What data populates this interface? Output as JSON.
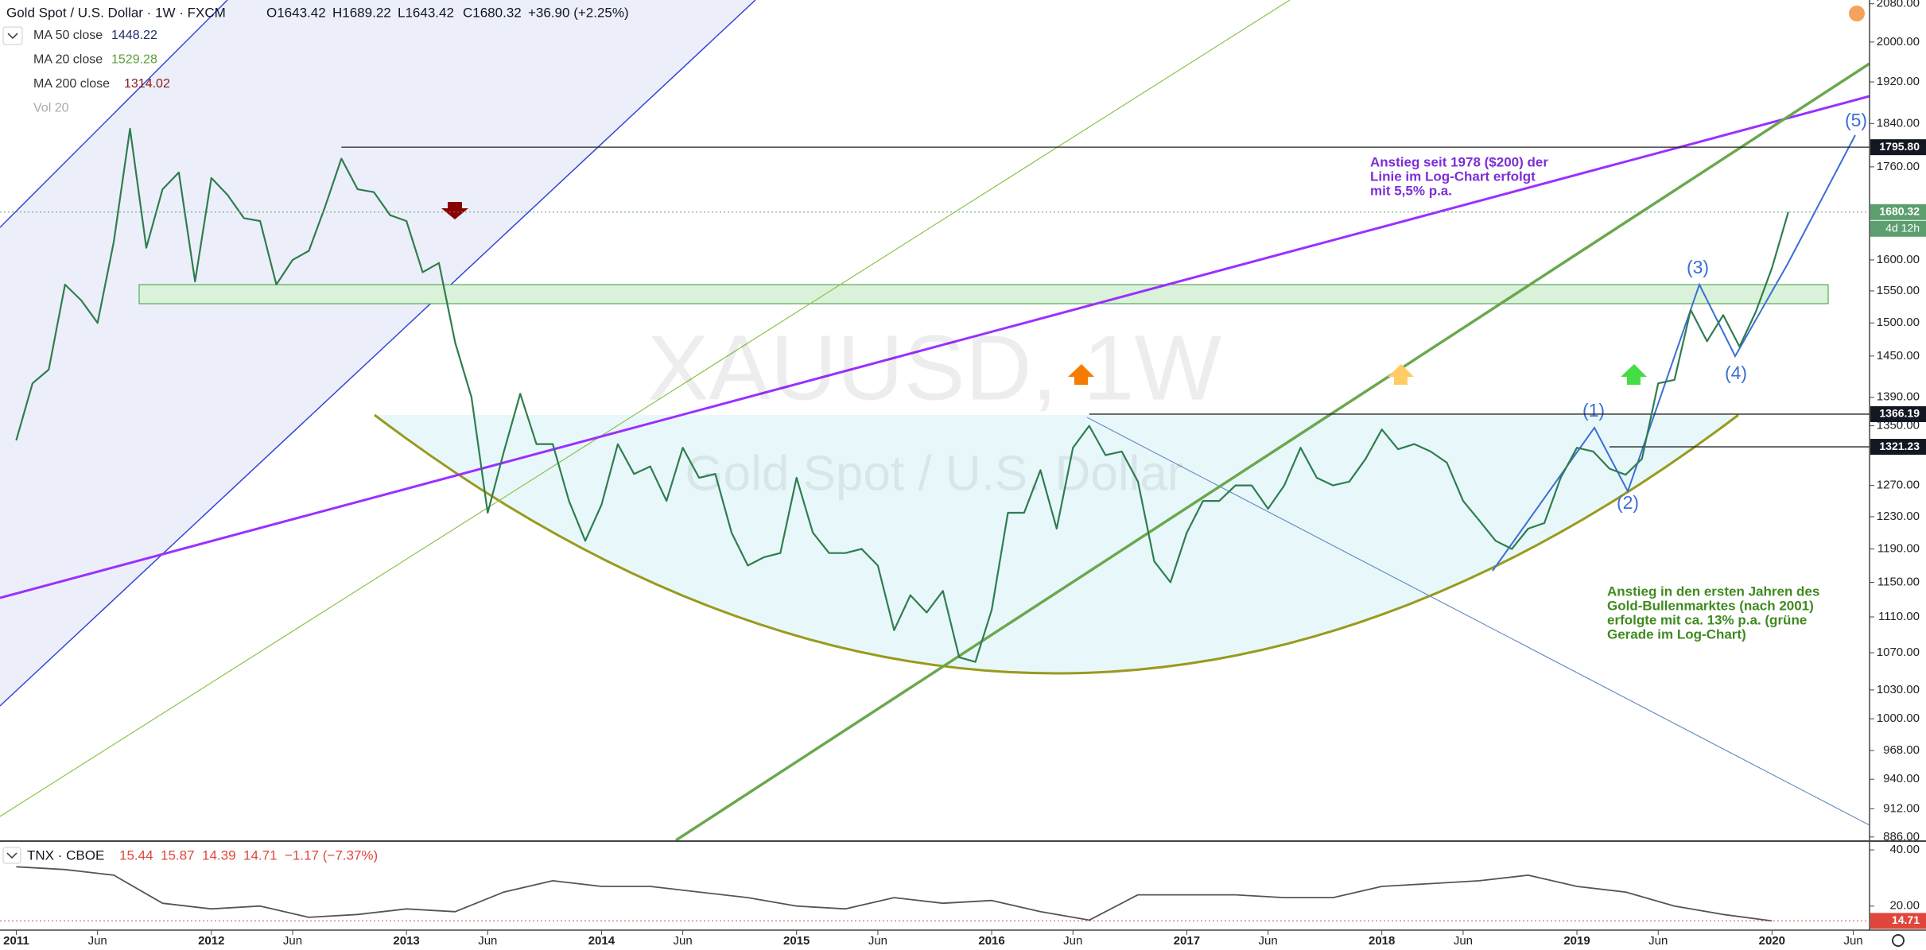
{
  "header": {
    "title": "Gold Spot / U.S. Dollar · 1W · FXCM",
    "ohlc": [
      "O1643.42",
      "H1689.22",
      "L1643.42",
      "C1680.32",
      "+36.90 (+2.25%)"
    ]
  },
  "indicators": [
    {
      "name": "MA 50 close",
      "value": "1448.22",
      "color": "#1a2e6e"
    },
    {
      "name": "MA 20 close",
      "value": "1529.28",
      "color": "#5e9e3a"
    },
    {
      "name": "MA 200 close",
      "value": "1314.02",
      "color": "#8b1a1a"
    },
    {
      "name": "Vol 20"
    }
  ],
  "watermark": {
    "symbol": "XAUUSD, 1W",
    "description": "Gold Spot / U.S. Dollar"
  },
  "annotations": {
    "purple": [
      "Anstieg seit 1978 ($200) der",
      "Linie im Log-Chart erfolgt",
      "mit 5,5% p.a."
    ],
    "green": [
      "Anstieg in den ersten Jahren des",
      "Gold-Bullenmarktes (nach 2001)",
      "erfolgte mit ca. 13% p.a. (grüne",
      "Gerade im Log-Chart)"
    ],
    "waves": [
      "(1)",
      "(2)",
      "(3)",
      "(4)",
      "(5)"
    ]
  },
  "lower_header": {
    "title": "TNX · CBOE",
    "ohlc": [
      "15.44",
      "15.87",
      "14.39",
      "14.71",
      "−1.17 (−7.37%)"
    ]
  },
  "chart_data": [
    {
      "type": "line",
      "log": true,
      "grid": false,
      "x": [
        "2011-01",
        "2011-02",
        "2011-03",
        "2011-04",
        "2011-05",
        "2011-06",
        "2011-07",
        "2011-08",
        "2011-09",
        "2011-10",
        "2011-11",
        "2011-12",
        "2012-01",
        "2012-02",
        "2012-03",
        "2012-04",
        "2012-05",
        "2012-06",
        "2012-07",
        "2012-08",
        "2012-09",
        "2012-10",
        "2012-11",
        "2012-12",
        "2013-01",
        "2013-02",
        "2013-03",
        "2013-04",
        "2013-05",
        "2013-06",
        "2013-07",
        "2013-08",
        "2013-09",
        "2013-10",
        "2013-11",
        "2013-12",
        "2014-01",
        "2014-02",
        "2014-03",
        "2014-04",
        "2014-05",
        "2014-06",
        "2014-07",
        "2014-08",
        "2014-09",
        "2014-10",
        "2014-11",
        "2014-12",
        "2015-01",
        "2015-02",
        "2015-03",
        "2015-04",
        "2015-05",
        "2015-06",
        "2015-07",
        "2015-08",
        "2015-09",
        "2015-10",
        "2015-11",
        "2015-12",
        "2016-01",
        "2016-02",
        "2016-03",
        "2016-04",
        "2016-05",
        "2016-06",
        "2016-07",
        "2016-08",
        "2016-09",
        "2016-10",
        "2016-11",
        "2016-12",
        "2017-01",
        "2017-02",
        "2017-03",
        "2017-04",
        "2017-05",
        "2017-06",
        "2017-07",
        "2017-08",
        "2017-09",
        "2017-10",
        "2017-11",
        "2017-12",
        "2018-01",
        "2018-02",
        "2018-03",
        "2018-04",
        "2018-05",
        "2018-06",
        "2018-07",
        "2018-08",
        "2018-09",
        "2018-10",
        "2018-11",
        "2018-12",
        "2019-01",
        "2019-02",
        "2019-03",
        "2019-04",
        "2019-05",
        "2019-06",
        "2019-07",
        "2019-08",
        "2019-09",
        "2019-10",
        "2019-11",
        "2019-12",
        "2020-01",
        "2020-02"
      ],
      "series": [
        {
          "name": "XAUUSD",
          "color": "#2f7d4f",
          "values": [
            1330,
            1410,
            1430,
            1560,
            1535,
            1500,
            1630,
            1830,
            1620,
            1720,
            1750,
            1565,
            1740,
            1710,
            1670,
            1665,
            1560,
            1600,
            1615,
            1690,
            1775,
            1720,
            1715,
            1675,
            1665,
            1580,
            1595,
            1470,
            1390,
            1235,
            1315,
            1395,
            1325,
            1325,
            1250,
            1200,
            1245,
            1325,
            1285,
            1295,
            1250,
            1320,
            1280,
            1285,
            1210,
            1170,
            1180,
            1185,
            1280,
            1210,
            1185,
            1185,
            1190,
            1170,
            1095,
            1135,
            1115,
            1140,
            1065,
            1060,
            1118,
            1235,
            1235,
            1290,
            1215,
            1320,
            1350,
            1310,
            1315,
            1275,
            1175,
            1150,
            1210,
            1250,
            1250,
            1270,
            1270,
            1240,
            1270,
            1320,
            1280,
            1270,
            1275,
            1305,
            1345,
            1318,
            1325,
            1315,
            1300,
            1250,
            1225,
            1200,
            1190,
            1215,
            1222,
            1280,
            1320,
            1315,
            1292,
            1284,
            1305,
            1410,
            1415,
            1520,
            1472,
            1512,
            1464,
            1517,
            1587,
            1680.32
          ]
        }
      ],
      "xlim": [
        "2010-12",
        "2020-07"
      ],
      "xticks": [
        {
          "value": "2011-01",
          "label": "2011"
        },
        {
          "value": "2011-06",
          "label": "Jun"
        },
        {
          "value": "2012-01",
          "label": "2012"
        },
        {
          "value": "2012-06",
          "label": "Jun"
        },
        {
          "value": "2013-01",
          "label": "2013"
        },
        {
          "value": "2013-06",
          "label": "Jun"
        },
        {
          "value": "2014-01",
          "label": "2014"
        },
        {
          "value": "2014-06",
          "label": "Jun"
        },
        {
          "value": "2015-01",
          "label": "2015"
        },
        {
          "value": "2015-06",
          "label": "Jun"
        },
        {
          "value": "2016-01",
          "label": "2016"
        },
        {
          "value": "2016-06",
          "label": "Jun"
        },
        {
          "value": "2017-01",
          "label": "2017"
        },
        {
          "value": "2017-06",
          "label": "Jun"
        },
        {
          "value": "2018-01",
          "label": "2018"
        },
        {
          "value": "2018-06",
          "label": "Jun"
        },
        {
          "value": "2019-01",
          "label": "2019"
        },
        {
          "value": "2019-06",
          "label": "Jun"
        },
        {
          "value": "2020-01",
          "label": "2020"
        },
        {
          "value": "2020-06",
          "label": "Jun"
        }
      ],
      "ylim": [
        883,
        2088
      ],
      "yticks": [
        {
          "value": 2080,
          "label": "2080.00"
        },
        {
          "value": 2000,
          "label": "2000.00"
        },
        {
          "value": 1920,
          "label": "1920.00"
        },
        {
          "value": 1840,
          "label": "1840.00"
        },
        {
          "value": 1760,
          "label": "1760.00"
        },
        {
          "value": 1600,
          "label": "1600.00"
        },
        {
          "value": 1550,
          "label": "1550.00"
        },
        {
          "value": 1500,
          "label": "1500.00"
        },
        {
          "value": 1450,
          "label": "1450.00"
        },
        {
          "value": 1390,
          "label": "1390.00"
        },
        {
          "value": 1350,
          "label": "1350.00"
        },
        {
          "value": 1270,
          "label": "1270.00"
        },
        {
          "value": 1230,
          "label": "1230.00"
        },
        {
          "value": 1190,
          "label": "1190.00"
        },
        {
          "value": 1150,
          "label": "1150.00"
        },
        {
          "value": 1110,
          "label": "1110.00"
        },
        {
          "value": 1070,
          "label": "1070.00"
        },
        {
          "value": 1030,
          "label": "1030.00"
        },
        {
          "value": 1000,
          "label": "1000.00"
        },
        {
          "value": 968,
          "label": "968.00"
        },
        {
          "value": 940,
          "label": "940.00"
        },
        {
          "value": 912,
          "label": "912.00"
        },
        {
          "value": 886,
          "label": "886.00"
        }
      ],
      "levels": [
        {
          "value": 1795.8,
          "label": "1795.80",
          "from": "2012-09"
        },
        {
          "value": 1366.19,
          "label": "1366.19",
          "from": "2016-07"
        },
        {
          "value": 1321.23,
          "label": "1321.23",
          "from": "2019-03"
        }
      ],
      "last_price": {
        "value": 1680.32,
        "label": "1680.32",
        "color": "#5c9e6e"
      },
      "countdown": "4d 12h"
    },
    {
      "type": "line",
      "log": false,
      "x": [
        "2011-01",
        "2011-04",
        "2011-07",
        "2011-10",
        "2012-01",
        "2012-04",
        "2012-07",
        "2012-10",
        "2013-01",
        "2013-04",
        "2013-07",
        "2013-10",
        "2014-01",
        "2014-04",
        "2014-07",
        "2014-10",
        "2015-01",
        "2015-04",
        "2015-07",
        "2015-10",
        "2016-01",
        "2016-04",
        "2016-07",
        "2016-10",
        "2017-01",
        "2017-04",
        "2017-07",
        "2017-10",
        "2018-01",
        "2018-04",
        "2018-07",
        "2018-10",
        "2019-01",
        "2019-04",
        "2019-07",
        "2019-10",
        "2020-01"
      ],
      "series": [
        {
          "name": "TNX",
          "color": "#555555",
          "values": [
            34,
            33,
            31,
            21,
            19,
            20,
            16,
            17,
            19,
            18,
            25,
            29,
            27,
            27,
            25,
            23,
            20,
            19,
            23,
            21,
            22,
            18,
            15,
            24,
            24,
            24,
            23,
            23,
            27,
            28,
            29,
            31,
            27,
            25,
            20,
            17,
            14.71
          ]
        }
      ],
      "ylim": [
        12,
        42
      ],
      "yticks": [
        {
          "value": 40,
          "label": "40.00"
        },
        {
          "value": 20,
          "label": "20.00"
        }
      ],
      "last_price": {
        "value": 14.71,
        "label": "14.71",
        "color": "#e0463c"
      }
    }
  ]
}
